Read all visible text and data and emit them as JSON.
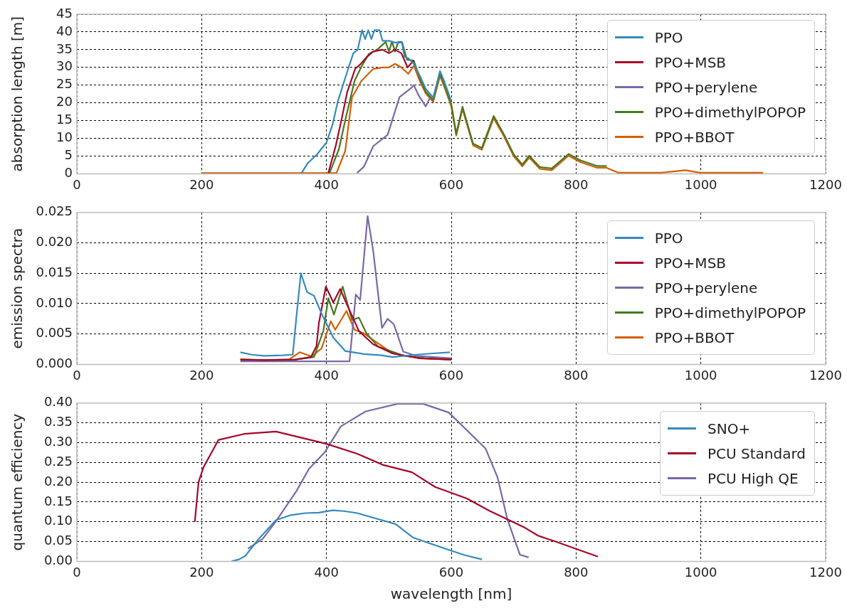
{
  "chart_data": [
    {
      "type": "line",
      "ylabel": "absorption length [m]",
      "xlim": [
        0,
        1200
      ],
      "xticks": [
        0,
        200,
        400,
        600,
        800,
        1000,
        1200
      ],
      "ylim": [
        0,
        45
      ],
      "yticks": [
        0,
        5,
        10,
        15,
        20,
        25,
        30,
        35,
        40,
        45
      ],
      "grid": true,
      "legend": "top right",
      "line_style": "solid",
      "series": [
        {
          "name": "PPO",
          "color": "#348abd",
          "x": [
            360,
            370,
            385,
            400,
            410,
            418,
            430,
            443,
            450,
            457,
            462,
            467,
            472,
            477,
            485,
            490,
            500,
            510,
            521,
            525,
            531,
            540,
            550,
            559,
            571,
            582,
            590,
            600
          ],
          "values": [
            0.2,
            3,
            5.5,
            8.8,
            14,
            20.3,
            27,
            34,
            35,
            40.5,
            38,
            40.5,
            38,
            40.5,
            40.5,
            37.5,
            37.5,
            37,
            37,
            33,
            32.6,
            31,
            27.5,
            24,
            21.5,
            29,
            25.5,
            20.5
          ]
        },
        {
          "name": "PPO+MSB",
          "color": "#a60628",
          "x": [
            403,
            415,
            425,
            433,
            446,
            455,
            465,
            475,
            490,
            500,
            510,
            520,
            530,
            540
          ],
          "values": [
            0.2,
            8,
            16,
            22.9,
            29.6,
            31,
            33,
            34.5,
            35,
            34,
            35,
            34,
            30,
            32
          ]
        },
        {
          "name": "PPO+perylene",
          "color": "#7a68a6",
          "x": [
            449,
            460,
            475,
            498,
            517,
            536,
            540,
            548,
            559,
            566
          ],
          "values": [
            0.2,
            2,
            7.8,
            11,
            21.6,
            24.2,
            25,
            22,
            19,
            21.5
          ]
        },
        {
          "name": "PPO+dimethylPOPOP",
          "color": "#467821",
          "x": [
            405,
            420,
            430,
            445,
            456,
            468,
            480,
            495,
            500,
            505,
            510,
            515,
            521,
            529,
            540,
            550,
            559,
            571,
            582,
            590,
            600,
            608,
            618,
            635,
            649,
            668,
            685,
            700,
            714,
            725,
            742,
            761,
            788,
            807,
            834,
            849
          ],
          "values": [
            0.2,
            7,
            15,
            26.2,
            30.2,
            33.8,
            34.8,
            37.2,
            34.5,
            37.2,
            34.5,
            37.2,
            37.2,
            32.2,
            31.9,
            26.8,
            23.2,
            20.8,
            28.3,
            24.5,
            19.7,
            11.3,
            18.9,
            8.5,
            7.3,
            16.3,
            10.9,
            5.5,
            2.6,
            5.1,
            1.9,
            1.5,
            5.6,
            3.8,
            2.2,
            2.2
          ]
        },
        {
          "name": "PPO+BBOT",
          "color": "#d55e00",
          "x": [
            200,
            416,
            430,
            441,
            456,
            475,
            490,
            500,
            510,
            520,
            531,
            540,
            550,
            559,
            571,
            582,
            590,
            600,
            608,
            618,
            635,
            649,
            668,
            685,
            700,
            714,
            725,
            742,
            761,
            788,
            807,
            834,
            849,
            868,
            937,
            975,
            998,
            1100
          ],
          "values": [
            0.2,
            0.2,
            6.4,
            21.6,
            26.2,
            29.6,
            30,
            30,
            31,
            30,
            28.2,
            30.5,
            26,
            22.7,
            20.3,
            27.6,
            24,
            19,
            10.8,
            18.3,
            8,
            6.8,
            15.7,
            10.4,
            5,
            2.1,
            4.6,
            1.4,
            1,
            5.1,
            3.3,
            1.7,
            1.7,
            0.3,
            0.3,
            1,
            0.3,
            0.3
          ]
        }
      ]
    },
    {
      "type": "line",
      "ylabel": "emission spectra",
      "xlim": [
        0,
        1200
      ],
      "xticks": [
        0,
        200,
        400,
        600,
        800,
        1000,
        1200
      ],
      "ylim": [
        0,
        0.025
      ],
      "yticks": [
        {
          "value": 0,
          "label": "0.000"
        },
        {
          "value": 0.005,
          "label": "0.005"
        },
        {
          "value": 0.01,
          "label": "0.010"
        },
        {
          "value": 0.015,
          "label": "0.015"
        },
        {
          "value": 0.02,
          "label": "0.020"
        },
        {
          "value": 0.025,
          "label": "0.025"
        }
      ],
      "grid": true,
      "legend": "top right",
      "line_style": "solid",
      "series": [
        {
          "name": "PPO",
          "color": "#348abd",
          "x": [
            262,
            280,
            300,
            330,
            346,
            352,
            359,
            369,
            380,
            392,
            411,
            430,
            460,
            488,
            506,
            544,
            570,
            598
          ],
          "values": [
            0.002,
            0.0016,
            0.0014,
            0.0015,
            0.0016,
            0.008,
            0.015,
            0.0119,
            0.0113,
            0.0084,
            0.0044,
            0.0022,
            0.0017,
            0.0015,
            0.0012,
            0.0016,
            0.0018,
            0.002
          ]
        },
        {
          "name": "PPO+MSB",
          "color": "#a60628",
          "x": [
            262,
            300,
            350,
            375,
            384,
            388,
            399,
            411,
            422,
            433,
            452,
            475,
            506,
            550,
            600
          ],
          "values": [
            0.0008,
            0.0007,
            0.0008,
            0.0012,
            0.003,
            0.0069,
            0.0128,
            0.0102,
            0.0124,
            0.0098,
            0.0055,
            0.0033,
            0.0018,
            0.001,
            0.0008
          ]
        },
        {
          "name": "PPO+perylene",
          "color": "#7a68a6",
          "x": [
            262,
            350,
            437,
            447,
            454,
            466,
            475,
            489,
            498,
            508,
            523,
            544,
            600
          ],
          "values": [
            0.0005,
            0.0005,
            0.0005,
            0.0115,
            0.0106,
            0.0244,
            0.0186,
            0.006,
            0.0075,
            0.0066,
            0.0021,
            0.0014,
            0.001
          ]
        },
        {
          "name": "PPO+dimethylPOPOP",
          "color": "#467821",
          "x": [
            262,
            300,
            350,
            380,
            395,
            403,
            412,
            426,
            441,
            452,
            464,
            483,
            525,
            560,
            600
          ],
          "values": [
            0.0008,
            0.0007,
            0.0008,
            0.0012,
            0.0055,
            0.0109,
            0.0082,
            0.0128,
            0.0073,
            0.0077,
            0.0051,
            0.0029,
            0.0014,
            0.001,
            0.0008
          ]
        },
        {
          "name": "PPO+BBOT",
          "color": "#d55e00",
          "x": [
            262,
            300,
            340,
            357,
            376,
            392,
            407,
            414,
            432,
            445,
            460,
            475,
            506,
            550,
            600
          ],
          "values": [
            0.0008,
            0.0007,
            0.0008,
            0.002,
            0.0013,
            0.0026,
            0.0071,
            0.0057,
            0.0088,
            0.0057,
            0.0051,
            0.004,
            0.0018,
            0.001,
            0.0008
          ]
        }
      ]
    },
    {
      "type": "line",
      "ylabel": "quantum efficiency",
      "xlabel": "wavelength [nm]",
      "xlim": [
        0,
        1200
      ],
      "xticks": [
        0,
        200,
        400,
        600,
        800,
        1000,
        1200
      ],
      "ylim": [
        0,
        0.4
      ],
      "yticks": [
        {
          "value": 0,
          "label": "0.00"
        },
        {
          "value": 0.05,
          "label": "0.05"
        },
        {
          "value": 0.1,
          "label": "0.10"
        },
        {
          "value": 0.15,
          "label": "0.15"
        },
        {
          "value": 0.2,
          "label": "0.20"
        },
        {
          "value": 0.25,
          "label": "0.25"
        },
        {
          "value": 0.3,
          "label": "0.30"
        },
        {
          "value": 0.35,
          "label": "0.35"
        },
        {
          "value": 0.4,
          "label": "0.40"
        }
      ],
      "grid": true,
      "legend": "top right",
      "line_style": "solid",
      "series": [
        {
          "name": "SNO+",
          "color": "#348abd",
          "x": [
            248,
            260,
            270,
            290,
            319,
            343,
            367,
            388,
            410,
            428,
            449,
            498,
            511,
            539,
            561,
            596,
            621,
            649
          ],
          "values": [
            0,
            0.005,
            0.014,
            0.054,
            0.104,
            0.117,
            0.122,
            0.123,
            0.129,
            0.127,
            0.122,
            0.1,
            0.094,
            0.06,
            0.048,
            0.029,
            0.016,
            0.005
          ]
        },
        {
          "name": "PCU Standard",
          "color": "#a60628",
          "x": [
            189,
            195,
            203,
            227,
            268,
            319,
            400,
            449,
            490,
            537,
            574,
            625,
            661,
            718,
            739,
            767,
            835
          ],
          "values": [
            0.1,
            0.2,
            0.238,
            0.307,
            0.322,
            0.328,
            0.297,
            0.272,
            0.244,
            0.225,
            0.188,
            0.159,
            0.128,
            0.085,
            0.065,
            0.05,
            0.012
          ]
        },
        {
          "name": "PCU High QE",
          "color": "#7a68a6",
          "x": [
            274,
            298,
            319,
            352,
            372,
            397,
            423,
            463,
            514,
            555,
            596,
            655,
            674,
            690,
            710,
            724
          ],
          "values": [
            0.032,
            0.057,
            0.101,
            0.178,
            0.234,
            0.275,
            0.341,
            0.379,
            0.398,
            0.398,
            0.376,
            0.285,
            0.213,
            0.106,
            0.017,
            0.01
          ]
        }
      ]
    }
  ]
}
